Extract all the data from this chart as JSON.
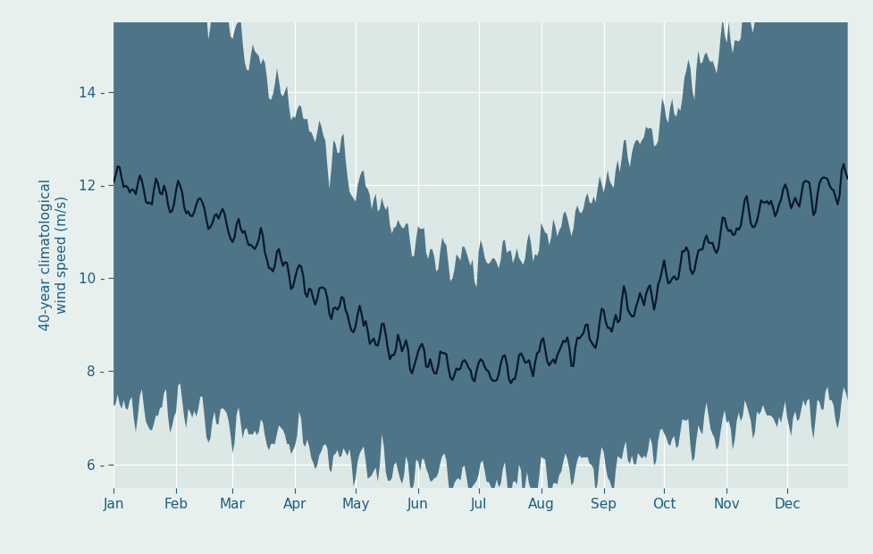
{
  "title": "",
  "ylabel": "40-year climatological\nwind speed (m/s)",
  "ylabel_color": "#1b5e82",
  "background_color": "#e8f0ee",
  "plot_bg_color": "#dce8e5",
  "band_color": "#4d7587",
  "band_alpha": 1.0,
  "line_color": "#0a1830",
  "line_width": 1.6,
  "ylim": [
    5.5,
    15.5
  ],
  "yticks": [
    6,
    8,
    10,
    12,
    14
  ],
  "months": [
    "Jan",
    "Feb",
    "Mar",
    "Apr",
    "May",
    "Jun",
    "Jul",
    "Aug",
    "Sep",
    "Oct",
    "Nov",
    "Dec"
  ],
  "figsize": [
    9.78,
    6.2
  ],
  "dpi": 100,
  "seed": 42
}
